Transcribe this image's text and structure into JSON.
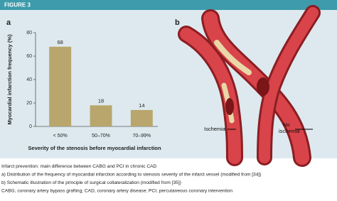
{
  "figure_label": "FIGURE 3",
  "panel_labels": [
    "a",
    "b"
  ],
  "chart_data": {
    "type": "bar",
    "y_label": "Myocardial infarction frequency (%)",
    "x_label": "Severity of the stenosis before myocardial infarction",
    "categories": [
      "< 50%",
      "50–70%",
      "70–99%"
    ],
    "values": [
      68,
      18,
      14
    ],
    "color": "#b9a66c",
    "ylim": [
      0,
      80
    ],
    "yticks": [
      0,
      20,
      40,
      60,
      80
    ],
    "grid": false
  },
  "illustration": {
    "ischemia": "Ischemia",
    "no_ischemia": [
      "No",
      "ischemia"
    ]
  },
  "caption": [
    "Infarct prevention: main difference between CABG and PCI in chronic CAD",
    "a) Distribution of the frequency of myocardial infarction according to stenosis severity of the infarct vessel (modified from [34])",
    "b) Schematic illustration of the principle of surgical collateralization (modified from [35])",
    "CABG, coronary artery bypass grafting; CAD, coronary artery disease; PCI, percutaneous coronary intervention"
  ]
}
